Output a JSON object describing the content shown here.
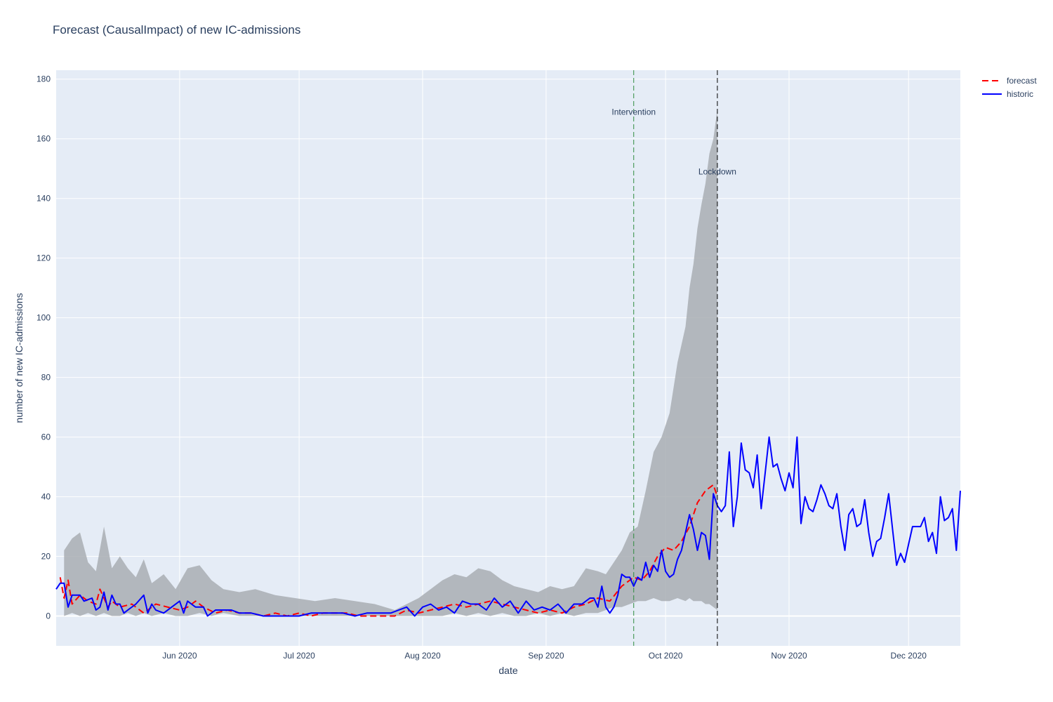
{
  "chart_data": {
    "type": "line",
    "title": "Forecast (CausalImpact) of new IC-admissions",
    "xlabel": "date",
    "ylabel": "number of new IC-admissions",
    "x_axis_type": "date",
    "xlim": [
      "2020-05-01",
      "2020-12-14"
    ],
    "ylim": [
      -10,
      183
    ],
    "yticks": [
      0,
      20,
      40,
      60,
      80,
      100,
      120,
      140,
      160,
      180
    ],
    "xticks": [
      {
        "date": "2020-06-01",
        "label": "Jun 2020"
      },
      {
        "date": "2020-07-01",
        "label": "Jul 2020"
      },
      {
        "date": "2020-08-01",
        "label": "Aug 2020"
      },
      {
        "date": "2020-09-01",
        "label": "Sep 2020"
      },
      {
        "date": "2020-10-01",
        "label": "Oct 2020"
      },
      {
        "date": "2020-11-01",
        "label": "Nov 2020"
      },
      {
        "date": "2020-12-01",
        "label": "Dec 2020"
      }
    ],
    "grid": true,
    "legend_position": "top-right",
    "colors": {
      "forecast": "#ff0000",
      "historic": "#0000ff",
      "band": "#a9aeb3",
      "plot_bg": "#e5ecf6",
      "intervention": "#2e8b3e",
      "lockdown": "#000000"
    },
    "series": [
      {
        "name": "forecast",
        "style": "dashed",
        "x": [
          "2020-05-02",
          "2020-05-03",
          "2020-05-04",
          "2020-05-05",
          "2020-05-07",
          "2020-05-09",
          "2020-05-11",
          "2020-05-12",
          "2020-05-14",
          "2020-05-15",
          "2020-05-17",
          "2020-05-20",
          "2020-05-23",
          "2020-05-26",
          "2020-05-29",
          "2020-06-01",
          "2020-06-03",
          "2020-06-05",
          "2020-06-07",
          "2020-06-10",
          "2020-06-13",
          "2020-06-16",
          "2020-06-19",
          "2020-06-22",
          "2020-06-25",
          "2020-06-28",
          "2020-07-01",
          "2020-07-04",
          "2020-07-07",
          "2020-07-10",
          "2020-07-13",
          "2020-07-16",
          "2020-07-19",
          "2020-07-22",
          "2020-07-25",
          "2020-07-28",
          "2020-07-31",
          "2020-08-03",
          "2020-08-06",
          "2020-08-09",
          "2020-08-12",
          "2020-08-15",
          "2020-08-18",
          "2020-08-21",
          "2020-08-24",
          "2020-08-27",
          "2020-08-30",
          "2020-09-02",
          "2020-09-05",
          "2020-09-08",
          "2020-09-11",
          "2020-09-14",
          "2020-09-17",
          "2020-09-20",
          "2020-09-23",
          "2020-09-25",
          "2020-09-27",
          "2020-09-29",
          "2020-10-01",
          "2020-10-03",
          "2020-10-05",
          "2020-10-07",
          "2020-10-09",
          "2020-10-11",
          "2020-10-13",
          "2020-10-14"
        ],
        "values": [
          13,
          6,
          12,
          4,
          7,
          5,
          4,
          9,
          3,
          5,
          3,
          4,
          1,
          4,
          3,
          2,
          3,
          5,
          3,
          1,
          2,
          1,
          1,
          0,
          1,
          0,
          1,
          0,
          1,
          1,
          1,
          0,
          0,
          0,
          0,
          2,
          1,
          2,
          3,
          4,
          3,
          4,
          5,
          4,
          3,
          2,
          1,
          2,
          1,
          3,
          4,
          6,
          5,
          10,
          13,
          12,
          15,
          20,
          23,
          22,
          25,
          30,
          38,
          42,
          44,
          40
        ]
      },
      {
        "name": "historic",
        "style": "solid",
        "x": [
          "2020-05-01",
          "2020-05-02",
          "2020-05-03",
          "2020-05-04",
          "2020-05-05",
          "2020-05-07",
          "2020-05-08",
          "2020-05-10",
          "2020-05-11",
          "2020-05-12",
          "2020-05-13",
          "2020-05-14",
          "2020-05-15",
          "2020-05-16",
          "2020-05-17",
          "2020-05-18",
          "2020-05-19",
          "2020-05-21",
          "2020-05-23",
          "2020-05-24",
          "2020-05-25",
          "2020-05-26",
          "2020-05-28",
          "2020-05-30",
          "2020-06-01",
          "2020-06-02",
          "2020-06-03",
          "2020-06-05",
          "2020-06-07",
          "2020-06-08",
          "2020-06-10",
          "2020-06-12",
          "2020-06-14",
          "2020-06-16",
          "2020-06-19",
          "2020-06-22",
          "2020-06-25",
          "2020-06-28",
          "2020-07-01",
          "2020-07-04",
          "2020-07-06",
          "2020-07-09",
          "2020-07-12",
          "2020-07-15",
          "2020-07-18",
          "2020-07-21",
          "2020-07-24",
          "2020-07-26",
          "2020-07-28",
          "2020-07-30",
          "2020-08-01",
          "2020-08-03",
          "2020-08-05",
          "2020-08-07",
          "2020-08-09",
          "2020-08-11",
          "2020-08-13",
          "2020-08-15",
          "2020-08-17",
          "2020-08-19",
          "2020-08-21",
          "2020-08-23",
          "2020-08-25",
          "2020-08-27",
          "2020-08-29",
          "2020-08-31",
          "2020-09-02",
          "2020-09-04",
          "2020-09-06",
          "2020-09-08",
          "2020-09-10",
          "2020-09-12",
          "2020-09-13",
          "2020-09-14",
          "2020-09-15",
          "2020-09-16",
          "2020-09-17",
          "2020-09-18",
          "2020-09-19",
          "2020-09-20",
          "2020-09-21",
          "2020-09-22",
          "2020-09-23",
          "2020-09-24",
          "2020-09-25",
          "2020-09-26",
          "2020-09-27",
          "2020-09-28",
          "2020-09-29",
          "2020-09-30",
          "2020-10-01",
          "2020-10-02",
          "2020-10-03",
          "2020-10-04",
          "2020-10-05",
          "2020-10-06",
          "2020-10-07",
          "2020-10-08",
          "2020-10-09",
          "2020-10-10",
          "2020-10-11",
          "2020-10-12",
          "2020-10-13",
          "2020-10-14",
          "2020-10-15",
          "2020-10-16",
          "2020-10-17",
          "2020-10-18",
          "2020-10-19",
          "2020-10-20",
          "2020-10-21",
          "2020-10-22",
          "2020-10-23",
          "2020-10-24",
          "2020-10-25",
          "2020-10-26",
          "2020-10-27",
          "2020-10-28",
          "2020-10-29",
          "2020-10-30",
          "2020-10-31",
          "2020-11-01",
          "2020-11-02",
          "2020-11-03",
          "2020-11-04",
          "2020-11-05",
          "2020-11-06",
          "2020-11-07",
          "2020-11-08",
          "2020-11-09",
          "2020-11-10",
          "2020-11-11",
          "2020-11-12",
          "2020-11-13",
          "2020-11-14",
          "2020-11-15",
          "2020-11-16",
          "2020-11-17",
          "2020-11-18",
          "2020-11-19",
          "2020-11-20",
          "2020-11-21",
          "2020-11-22",
          "2020-11-23",
          "2020-11-24",
          "2020-11-25",
          "2020-11-26",
          "2020-11-27",
          "2020-11-28",
          "2020-11-29",
          "2020-11-30",
          "2020-12-01",
          "2020-12-02",
          "2020-12-03",
          "2020-12-04",
          "2020-12-05",
          "2020-12-06",
          "2020-12-07",
          "2020-12-08",
          "2020-12-09",
          "2020-12-10",
          "2020-12-11",
          "2020-12-12",
          "2020-12-13",
          "2020-12-14"
        ],
        "values": [
          9,
          11,
          11,
          3,
          7,
          7,
          5,
          6,
          2,
          3,
          8,
          2,
          7,
          4,
          4,
          1,
          2,
          4,
          7,
          1,
          4,
          2,
          1,
          3,
          5,
          1,
          5,
          3,
          3,
          0,
          2,
          2,
          2,
          1,
          1,
          0,
          0,
          0,
          0,
          1,
          1,
          1,
          1,
          0,
          1,
          1,
          1,
          2,
          3,
          0,
          3,
          4,
          2,
          3,
          1,
          5,
          4,
          4,
          2,
          6,
          3,
          5,
          1,
          5,
          2,
          3,
          2,
          4,
          1,
          4,
          4,
          6,
          6,
          3,
          10,
          3,
          1,
          3,
          7,
          14,
          13,
          13,
          10,
          13,
          12,
          18,
          13,
          17,
          15,
          22,
          15,
          13,
          14,
          19,
          22,
          28,
          34,
          29,
          22,
          28,
          27,
          19,
          41,
          37,
          35,
          37,
          55,
          30,
          40,
          58,
          49,
          48,
          43,
          54,
          36,
          48,
          60,
          50,
          51,
          46,
          42,
          48,
          43,
          60,
          31,
          40,
          36,
          35,
          39,
          44,
          41,
          37,
          36,
          41,
          30,
          22,
          34,
          36,
          30,
          31,
          39,
          28,
          20,
          25,
          26,
          33,
          41,
          29,
          17,
          21,
          18,
          24,
          30,
          30,
          30,
          33,
          25,
          28,
          21,
          40,
          32,
          33,
          36,
          22,
          42
        ]
      }
    ],
    "confidence_band": {
      "x": [
        "2020-05-03",
        "2020-05-05",
        "2020-05-07",
        "2020-05-09",
        "2020-05-11",
        "2020-05-13",
        "2020-05-15",
        "2020-05-17",
        "2020-05-19",
        "2020-05-21",
        "2020-05-23",
        "2020-05-25",
        "2020-05-28",
        "2020-05-31",
        "2020-06-03",
        "2020-06-06",
        "2020-06-09",
        "2020-06-12",
        "2020-06-16",
        "2020-06-20",
        "2020-06-25",
        "2020-06-30",
        "2020-07-05",
        "2020-07-10",
        "2020-07-15",
        "2020-07-20",
        "2020-07-25",
        "2020-07-28",
        "2020-07-31",
        "2020-08-03",
        "2020-08-06",
        "2020-08-09",
        "2020-08-12",
        "2020-08-15",
        "2020-08-18",
        "2020-08-21",
        "2020-08-24",
        "2020-08-27",
        "2020-08-30",
        "2020-09-02",
        "2020-09-05",
        "2020-09-08",
        "2020-09-11",
        "2020-09-14",
        "2020-09-16",
        "2020-09-18",
        "2020-09-20",
        "2020-09-22",
        "2020-09-24",
        "2020-09-26",
        "2020-09-28",
        "2020-09-30",
        "2020-10-02",
        "2020-10-04",
        "2020-10-06",
        "2020-10-07",
        "2020-10-08",
        "2020-10-09",
        "2020-10-10",
        "2020-10-11",
        "2020-10-12",
        "2020-10-13",
        "2020-10-14"
      ],
      "upper": [
        22,
        26,
        28,
        18,
        15,
        30,
        16,
        20,
        16,
        13,
        19,
        11,
        14,
        9,
        16,
        17,
        12,
        9,
        8,
        9,
        7,
        6,
        5,
        6,
        5,
        4,
        2,
        4,
        6,
        9,
        12,
        14,
        13,
        16,
        15,
        12,
        10,
        9,
        8,
        10,
        9,
        10,
        16,
        15,
        14,
        18,
        22,
        28,
        30,
        42,
        55,
        60,
        68,
        85,
        97,
        110,
        118,
        130,
        138,
        145,
        155,
        160,
        170
      ],
      "lower": [
        0,
        1,
        0,
        1,
        0,
        1,
        0,
        0,
        1,
        0,
        1,
        0,
        1,
        0,
        0,
        1,
        0,
        1,
        0,
        0,
        0,
        0,
        0,
        0,
        0,
        0,
        0,
        0,
        0,
        0,
        0,
        1,
        0,
        1,
        0,
        1,
        0,
        0,
        1,
        0,
        1,
        0,
        1,
        1,
        2,
        3,
        3,
        4,
        5,
        5,
        6,
        5,
        5,
        6,
        5,
        6,
        5,
        5,
        5,
        4,
        4,
        3,
        2
      ]
    },
    "annotations": [
      {
        "date": "2020-09-23",
        "label": "Intervention",
        "y": 169,
        "color": "intervention"
      },
      {
        "date": "2020-10-14",
        "label": "Lockdown",
        "y": 149,
        "color": "lockdown"
      }
    ]
  }
}
